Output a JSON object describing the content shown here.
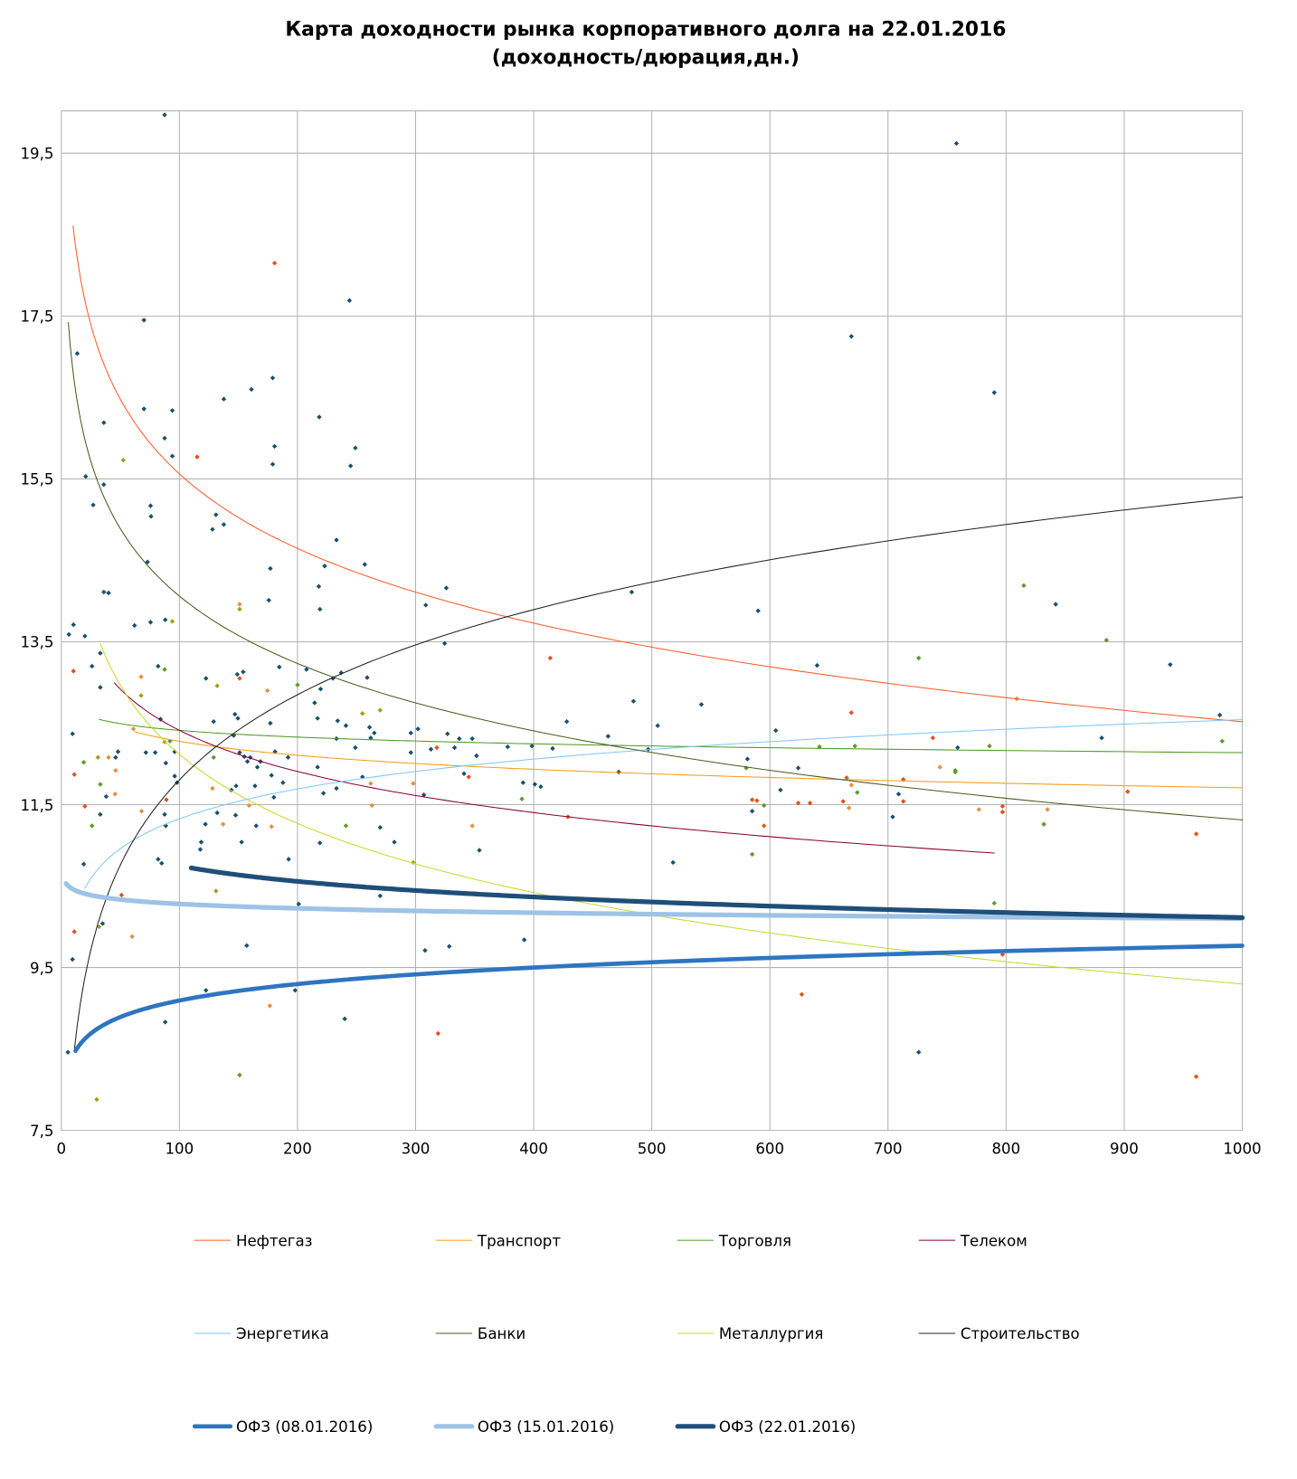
{
  "chart_data": {
    "type": "scatter",
    "title": "Карта доходности рынка корпоративного долга на 22.01.2016",
    "subtitle": "(доходность/дюрация,дн.)",
    "xlabel": "",
    "ylabel": "",
    "xlim": [
      0,
      1000
    ],
    "ylim": [
      7.5,
      20
    ],
    "grid": true,
    "legend_position": "bottom",
    "x_ticks": [
      0,
      100,
      200,
      300,
      400,
      500,
      600,
      700,
      800,
      900,
      1000
    ],
    "x_tick_labels": [
      "0",
      "100",
      "200",
      "300",
      "400",
      "500",
      "600",
      "700",
      "800",
      "900",
      "1000"
    ],
    "y_ticks": [
      7.5,
      9.5,
      11.5,
      13.5,
      15.5,
      17.5,
      19.5
    ],
    "y_tick_labels": [
      "7,5",
      "9,5",
      "11,5",
      "13,5",
      "15,5",
      "17,5",
      "19,5"
    ],
    "point_colors": {
      "d": "#1b4f6b",
      "r": "#e5501c",
      "o": "#e39040",
      "g": "#5d9b2c",
      "y": "#a59c12"
    },
    "series": [
      {
        "name": "Нефтегаз",
        "color": "#ff5a2a",
        "width": 1,
        "fit": {
          "type": "log",
          "a": 21.65,
          "b": -1.322
        },
        "x_range": [
          10,
          1000
        ]
      },
      {
        "name": "Транспорт",
        "color": "#ff9a10",
        "width": 1,
        "fit": {
          "type": "log",
          "a": 13.42,
          "b": -0.248
        },
        "x_range": [
          62,
          1000
        ]
      },
      {
        "name": "Торговля",
        "color": "#4c9a20",
        "width": 1,
        "fit": {
          "type": "log",
          "a": 12.96,
          "b": -0.119
        },
        "x_range": [
          32,
          1000
        ]
      },
      {
        "name": "Телеком",
        "color": "#8a0030",
        "width": 1,
        "fit": {
          "type": "log",
          "a": 15.77,
          "b": -0.729
        },
        "x_range": [
          45,
          790
        ]
      },
      {
        "name": "Энергетика",
        "color": "#7fc6ff",
        "width": 1,
        "fit": {
          "type": "log",
          "a": 8.89,
          "b": 0.529
        },
        "x_range": [
          20,
          1000
        ]
      },
      {
        "name": "Банки",
        "color": "#4b5a1e",
        "width": 1,
        "fit": {
          "type": "log",
          "a": 19.56,
          "b": -1.194
        },
        "x_range": [
          6,
          1000
        ]
      },
      {
        "name": "Металлургия",
        "color": "#c5da2c",
        "width": 1,
        "fit": {
          "type": "log",
          "a": 17.76,
          "b": -1.225
        },
        "x_range": [
          33,
          1000
        ]
      },
      {
        "name": "Строительство",
        "color": "#202020",
        "width": 1,
        "fit": {
          "type": "log",
          "a": 4.86,
          "b": 1.508
        },
        "x_range": [
          11,
          1000
        ]
      },
      {
        "name": "ОФЗ (08.01.2016)",
        "color": "#2e75c0",
        "width": 4.5,
        "fit": {
          "type": "log",
          "a": 7.75,
          "b": 0.292
        },
        "x_range": [
          12,
          1000
        ]
      },
      {
        "name": "ОФЗ (15.01.2016)",
        "color": "#9dc3e6",
        "width": 5,
        "fit": {
          "type": "log",
          "a": 10.64,
          "b": -0.078
        },
        "x_range": [
          4,
          1000
        ]
      },
      {
        "name": "ОФЗ (22.01.2016)",
        "color": "#1f4e79",
        "width": 5,
        "fit": {
          "type": "log",
          "a": 12.02,
          "b": -0.276
        },
        "x_range": [
          110,
          1000
        ]
      }
    ],
    "points": [
      [
        87.5,
        19.97,
        "d"
      ],
      [
        758,
        19.62,
        "d"
      ],
      [
        180.6,
        18.15,
        "r"
      ],
      [
        244,
        17.69,
        "d"
      ],
      [
        70,
        17.45,
        "d"
      ],
      [
        669,
        17.25,
        "d"
      ],
      [
        13.5,
        17.04,
        "d"
      ],
      [
        179,
        16.74,
        "d"
      ],
      [
        161,
        16.6,
        "d"
      ],
      [
        137.6,
        16.48,
        "d"
      ],
      [
        790,
        16.56,
        "d"
      ],
      [
        70,
        16.36,
        "d"
      ],
      [
        94,
        16.34,
        "d"
      ],
      [
        218.4,
        16.26,
        "d"
      ],
      [
        36,
        16.19,
        "d"
      ],
      [
        87.5,
        16.0,
        "d"
      ],
      [
        180.6,
        15.9,
        "d"
      ],
      [
        249,
        15.88,
        "d"
      ],
      [
        94,
        15.78,
        "d"
      ],
      [
        115,
        15.77,
        "r"
      ],
      [
        52.5,
        15.73,
        "y"
      ],
      [
        179,
        15.68,
        "d"
      ],
      [
        245,
        15.66,
        "d"
      ],
      [
        20.7,
        15.53,
        "d"
      ],
      [
        36,
        15.43,
        "d"
      ],
      [
        27,
        15.18,
        "d"
      ],
      [
        75.6,
        15.17,
        "d"
      ],
      [
        131,
        15.06,
        "d"
      ],
      [
        76,
        15.04,
        "d"
      ],
      [
        137.6,
        14.94,
        "d"
      ],
      [
        128,
        14.88,
        "d"
      ],
      [
        233,
        14.75,
        "d"
      ],
      [
        73,
        14.48,
        "d"
      ],
      [
        177,
        14.4,
        "d"
      ],
      [
        257,
        14.45,
        "d"
      ],
      [
        223,
        14.43,
        "d"
      ],
      [
        218,
        14.18,
        "d"
      ],
      [
        326,
        14.16,
        "d"
      ],
      [
        36,
        14.11,
        "d"
      ],
      [
        40,
        14.1,
        "d"
      ],
      [
        483,
        14.11,
        "d"
      ],
      [
        815,
        14.19,
        "g"
      ],
      [
        175.7,
        14.01,
        "d"
      ],
      [
        151,
        13.96,
        "o"
      ],
      [
        151,
        13.9,
        "y"
      ],
      [
        308.6,
        13.95,
        "d"
      ],
      [
        842,
        13.96,
        "d"
      ],
      [
        219,
        13.9,
        "d"
      ],
      [
        590,
        13.88,
        "d"
      ],
      [
        10.3,
        13.71,
        "d"
      ],
      [
        88,
        13.77,
        "d"
      ],
      [
        94,
        13.75,
        "y"
      ],
      [
        75.6,
        13.74,
        "d"
      ],
      [
        62,
        13.7,
        "d"
      ],
      [
        6.4,
        13.59,
        "d"
      ],
      [
        20,
        13.57,
        "d"
      ],
      [
        885,
        13.52,
        "g"
      ],
      [
        324.6,
        13.48,
        "d"
      ],
      [
        414,
        13.3,
        "r"
      ],
      [
        726,
        13.3,
        "g"
      ],
      [
        33,
        13.36,
        "d"
      ],
      [
        640,
        13.21,
        "d"
      ],
      [
        939,
        13.22,
        "d"
      ],
      [
        10.3,
        13.14,
        "r"
      ],
      [
        26,
        13.2,
        "d"
      ],
      [
        82,
        13.2,
        "d"
      ],
      [
        87.5,
        13.16,
        "g"
      ],
      [
        184.6,
        13.19,
        "d"
      ],
      [
        207.6,
        13.16,
        "d"
      ],
      [
        149,
        13.1,
        "d"
      ],
      [
        154,
        13.13,
        "d"
      ],
      [
        237,
        13.12,
        "d"
      ],
      [
        230,
        13.05,
        "d"
      ],
      [
        259,
        13.06,
        "d"
      ],
      [
        122.5,
        13.05,
        "d"
      ],
      [
        67.6,
        13.07,
        "o"
      ],
      [
        132,
        12.96,
        "y"
      ],
      [
        33,
        12.94,
        "d"
      ],
      [
        151,
        13.05,
        "r"
      ],
      [
        219.6,
        12.92,
        "d"
      ],
      [
        200,
        12.97,
        "g"
      ],
      [
        67.6,
        12.84,
        "y"
      ],
      [
        174.5,
        12.9,
        "o"
      ],
      [
        214.5,
        12.75,
        "d"
      ],
      [
        484.5,
        12.77,
        "d"
      ],
      [
        542,
        12.73,
        "d"
      ],
      [
        809,
        12.8,
        "o"
      ],
      [
        270,
        12.66,
        "y"
      ],
      [
        255,
        12.62,
        "y"
      ],
      [
        669,
        12.63,
        "r"
      ],
      [
        981,
        12.6,
        "d"
      ],
      [
        147,
        12.61,
        "d"
      ],
      [
        149.5,
        12.56,
        "d"
      ],
      [
        84,
        12.55,
        "d"
      ],
      [
        129,
        12.52,
        "d"
      ],
      [
        177,
        12.5,
        "d"
      ],
      [
        234,
        12.53,
        "d"
      ],
      [
        217,
        12.56,
        "d"
      ],
      [
        505,
        12.47,
        "d"
      ],
      [
        428,
        12.52,
        "d"
      ],
      [
        605,
        12.41,
        "d"
      ],
      [
        61,
        12.43,
        "o"
      ],
      [
        241,
        12.47,
        "d"
      ],
      [
        261,
        12.45,
        "d"
      ],
      [
        9.5,
        12.37,
        "d"
      ],
      [
        146,
        12.35,
        "d"
      ],
      [
        265,
        12.38,
        "d"
      ],
      [
        233,
        12.31,
        "d"
      ],
      [
        262,
        12.32,
        "d"
      ],
      [
        463,
        12.34,
        "d"
      ],
      [
        738,
        12.32,
        "r"
      ],
      [
        881,
        12.32,
        "d"
      ],
      [
        92,
        12.28,
        "g"
      ],
      [
        87.5,
        12.27,
        "y"
      ],
      [
        296,
        12.38,
        "d"
      ],
      [
        302,
        12.43,
        "d"
      ],
      [
        327,
        12.37,
        "d"
      ],
      [
        337,
        12.31,
        "d"
      ],
      [
        348,
        12.31,
        "d"
      ],
      [
        398.5,
        12.22,
        "d"
      ],
      [
        318,
        12.2,
        "r"
      ],
      [
        313,
        12.18,
        "d"
      ],
      [
        333,
        12.2,
        "d"
      ],
      [
        983,
        12.28,
        "g"
      ],
      [
        48,
        12.15,
        "d"
      ],
      [
        71.6,
        12.14,
        "d"
      ],
      [
        79.5,
        12.14,
        "d"
      ],
      [
        96,
        12.15,
        "d"
      ],
      [
        151,
        12.14,
        "d"
      ],
      [
        181,
        12.15,
        "d"
      ],
      [
        249,
        12.2,
        "d"
      ],
      [
        378,
        12.21,
        "d"
      ],
      [
        416,
        12.19,
        "d"
      ],
      [
        497,
        12.18,
        "d"
      ],
      [
        642,
        12.21,
        "g"
      ],
      [
        672,
        12.22,
        "g"
      ],
      [
        786,
        12.22,
        "g"
      ],
      [
        759,
        12.2,
        "d"
      ],
      [
        40,
        12.08,
        "o"
      ],
      [
        31,
        12.08,
        "y"
      ],
      [
        46,
        12.08,
        "d"
      ],
      [
        129,
        12.08,
        "g"
      ],
      [
        155,
        12.09,
        "d"
      ],
      [
        160,
        12.08,
        "d"
      ],
      [
        192,
        12.08,
        "d"
      ],
      [
        296,
        12.14,
        "d"
      ],
      [
        351.6,
        12.1,
        "d"
      ],
      [
        19,
        12.02,
        "g"
      ],
      [
        88.5,
        12.01,
        "d"
      ],
      [
        157.6,
        12.03,
        "d"
      ],
      [
        166,
        11.96,
        "d"
      ],
      [
        168.6,
        12.03,
        "d"
      ],
      [
        217,
        11.96,
        "d"
      ],
      [
        581,
        12.06,
        "d"
      ],
      [
        580,
        11.95,
        "g"
      ],
      [
        624,
        11.95,
        "d"
      ],
      [
        744,
        11.96,
        "o"
      ],
      [
        757,
        11.92,
        "g"
      ],
      [
        757,
        11.9,
        "g"
      ],
      [
        11,
        11.87,
        "r"
      ],
      [
        46,
        11.92,
        "o"
      ],
      [
        96,
        11.85,
        "d"
      ],
      [
        178,
        11.86,
        "d"
      ],
      [
        341,
        11.88,
        "d"
      ],
      [
        345,
        11.84,
        "r"
      ],
      [
        255,
        11.84,
        "d"
      ],
      [
        472,
        11.9,
        "d"
      ],
      [
        713,
        11.81,
        "r"
      ],
      [
        665,
        11.83,
        "r"
      ],
      [
        98,
        11.77,
        "d"
      ],
      [
        164,
        11.73,
        "d"
      ],
      [
        144,
        11.68,
        "d"
      ],
      [
        187.7,
        11.77,
        "d"
      ],
      [
        262,
        11.76,
        "o"
      ],
      [
        298,
        11.76,
        "o"
      ],
      [
        391,
        11.77,
        "d"
      ],
      [
        401,
        11.75,
        "d"
      ],
      [
        406,
        11.72,
        "d"
      ],
      [
        609,
        11.68,
        "d"
      ],
      [
        669,
        11.74,
        "o"
      ],
      [
        33,
        11.75,
        "g"
      ],
      [
        45.5,
        11.63,
        "o"
      ],
      [
        38,
        11.6,
        "d"
      ],
      [
        128,
        11.7,
        "o"
      ],
      [
        148,
        11.73,
        "d"
      ],
      [
        233,
        11.7,
        "d"
      ],
      [
        709,
        11.63,
        "d"
      ],
      [
        903,
        11.66,
        "r"
      ],
      [
        89,
        11.56,
        "r"
      ],
      [
        180,
        11.59,
        "d"
      ],
      [
        222,
        11.64,
        "d"
      ],
      [
        390,
        11.57,
        "g"
      ],
      [
        307,
        11.62,
        "d"
      ],
      [
        585,
        11.56,
        "r"
      ],
      [
        589,
        11.55,
        "r"
      ],
      [
        624,
        11.52,
        "r"
      ],
      [
        634,
        11.52,
        "r"
      ],
      [
        662,
        11.54,
        "r"
      ],
      [
        674,
        11.65,
        "g"
      ],
      [
        713,
        11.54,
        "r"
      ],
      [
        20,
        11.48,
        "r"
      ],
      [
        68,
        11.42,
        "o"
      ],
      [
        159,
        11.49,
        "o"
      ],
      [
        263,
        11.49,
        "o"
      ],
      [
        595,
        11.49,
        "g"
      ],
      [
        667,
        11.46,
        "o"
      ],
      [
        777,
        11.44,
        "o"
      ],
      [
        797,
        11.48,
        "r"
      ],
      [
        797,
        11.41,
        "r"
      ],
      [
        835,
        11.44,
        "o"
      ],
      [
        33,
        11.38,
        "d"
      ],
      [
        132,
        11.4,
        "d"
      ],
      [
        147.6,
        11.37,
        "d"
      ],
      [
        87.5,
        11.38,
        "d"
      ],
      [
        585,
        11.42,
        "d"
      ],
      [
        704,
        11.35,
        "d"
      ],
      [
        429,
        11.35,
        "r"
      ],
      [
        26,
        11.24,
        "g"
      ],
      [
        88.5,
        11.24,
        "d"
      ],
      [
        137,
        11.26,
        "o"
      ],
      [
        122,
        11.26,
        "d"
      ],
      [
        165,
        11.24,
        "d"
      ],
      [
        178,
        11.23,
        "o"
      ],
      [
        241,
        11.24,
        "g"
      ],
      [
        270,
        11.22,
        "d"
      ],
      [
        348,
        11.24,
        "o"
      ],
      [
        595,
        11.24,
        "r"
      ],
      [
        832,
        11.26,
        "g"
      ],
      [
        961,
        11.14,
        "r"
      ],
      [
        118.5,
        11.04,
        "d"
      ],
      [
        282,
        11.04,
        "d"
      ],
      [
        219,
        11.03,
        "d"
      ],
      [
        117.7,
        10.95,
        "d"
      ],
      [
        152.7,
        11.04,
        "d"
      ],
      [
        354,
        10.94,
        "d"
      ],
      [
        585,
        10.89,
        "g"
      ],
      [
        19,
        10.77,
        "d"
      ],
      [
        82,
        10.83,
        "d"
      ],
      [
        85,
        10.78,
        "d"
      ],
      [
        192.5,
        10.83,
        "d"
      ],
      [
        518,
        10.79,
        "d"
      ],
      [
        298,
        10.79,
        "y"
      ],
      [
        131,
        10.44,
        "y"
      ],
      [
        270,
        10.38,
        "d"
      ],
      [
        51,
        10.39,
        "r"
      ],
      [
        201,
        10.28,
        "d"
      ],
      [
        790,
        10.29,
        "g"
      ],
      [
        35,
        10.04,
        "d"
      ],
      [
        32,
        10.0,
        "y"
      ],
      [
        11,
        9.94,
        "r"
      ],
      [
        60,
        9.88,
        "o"
      ],
      [
        392,
        9.84,
        "d"
      ],
      [
        157,
        9.77,
        "d"
      ],
      [
        328.5,
        9.76,
        "d"
      ],
      [
        308,
        9.71,
        "d"
      ],
      [
        797,
        9.66,
        "r"
      ],
      [
        9.5,
        9.6,
        "d"
      ],
      [
        122.5,
        9.22,
        "d"
      ],
      [
        198,
        9.22,
        "d"
      ],
      [
        627,
        9.17,
        "r"
      ],
      [
        176.6,
        9.03,
        "o"
      ],
      [
        240,
        8.87,
        "d"
      ],
      [
        88,
        8.83,
        "d"
      ],
      [
        319,
        8.69,
        "r"
      ],
      [
        5.6,
        8.46,
        "d"
      ],
      [
        726,
        8.46,
        "d"
      ],
      [
        151,
        8.18,
        "g"
      ],
      [
        30,
        7.88,
        "y"
      ],
      [
        961,
        8.16,
        "r"
      ]
    ]
  }
}
